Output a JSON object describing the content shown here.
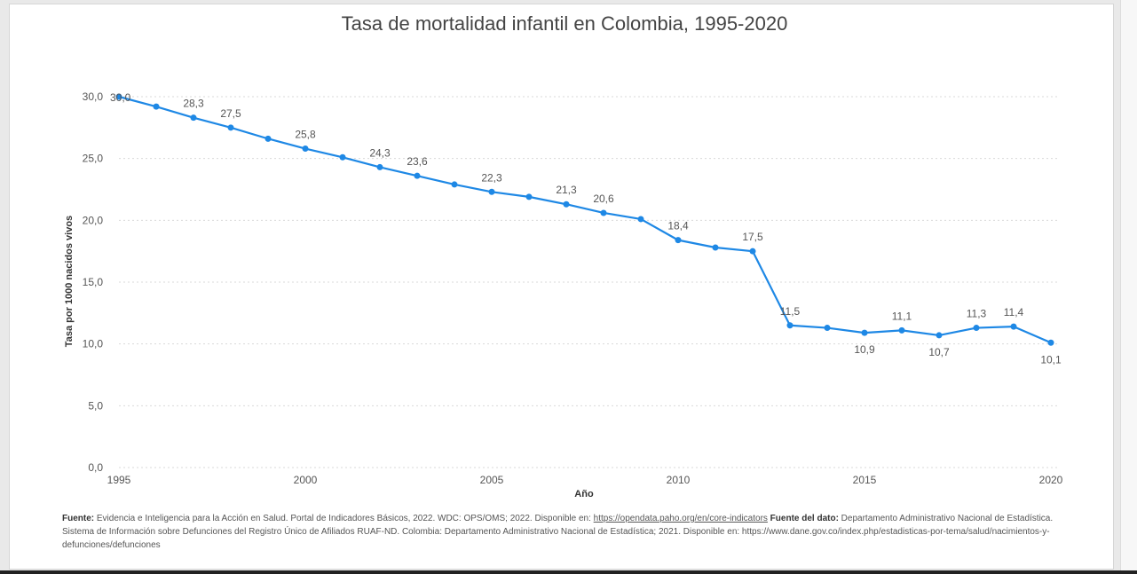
{
  "chart_data": {
    "type": "line",
    "title": "Tasa de mortalidad infantil en Colombia, 1995-2020",
    "xlabel": "Año",
    "ylabel": "Tasa por 1000 nacidos vivos",
    "xlim": [
      1995,
      2020
    ],
    "ylim": [
      0,
      30
    ],
    "x_ticks": [
      "1995",
      "2000",
      "2005",
      "2010",
      "2015",
      "2020"
    ],
    "y_ticks": [
      "0,0",
      "5,0",
      "10,0",
      "15,0",
      "20,0",
      "25,0",
      "30,0"
    ],
    "grid": true,
    "series": [
      {
        "name": "Tasa de mortalidad infantil",
        "color": "#1e88e5",
        "x": [
          1995,
          1996,
          1997,
          1998,
          1999,
          2000,
          2001,
          2002,
          2003,
          2004,
          2005,
          2006,
          2007,
          2008,
          2009,
          2010,
          2011,
          2012,
          2013,
          2014,
          2015,
          2016,
          2017,
          2018,
          2019,
          2020
        ],
        "values": [
          30.0,
          29.2,
          28.3,
          27.5,
          26.6,
          25.8,
          25.1,
          24.3,
          23.6,
          22.9,
          22.3,
          21.9,
          21.3,
          20.6,
          20.1,
          18.4,
          17.8,
          17.5,
          11.5,
          11.3,
          10.9,
          11.1,
          10.7,
          11.3,
          11.4,
          10.1
        ]
      }
    ],
    "data_labels": [
      {
        "year": 1995,
        "text": "30,0",
        "pos": "right"
      },
      {
        "year": 1997,
        "text": "28,3",
        "pos": "above"
      },
      {
        "year": 1998,
        "text": "27,5",
        "pos": "above"
      },
      {
        "year": 2000,
        "text": "25,8",
        "pos": "above"
      },
      {
        "year": 2002,
        "text": "24,3",
        "pos": "above"
      },
      {
        "year": 2003,
        "text": "23,6",
        "pos": "above"
      },
      {
        "year": 2005,
        "text": "22,3",
        "pos": "above"
      },
      {
        "year": 2007,
        "text": "21,3",
        "pos": "above"
      },
      {
        "year": 2008,
        "text": "20,6",
        "pos": "above"
      },
      {
        "year": 2010,
        "text": "18,4",
        "pos": "above"
      },
      {
        "year": 2012,
        "text": "17,5",
        "pos": "above"
      },
      {
        "year": 2013,
        "text": "11,5",
        "pos": "above"
      },
      {
        "year": 2015,
        "text": "10,9",
        "pos": "below"
      },
      {
        "year": 2016,
        "text": "11,1",
        "pos": "above"
      },
      {
        "year": 2017,
        "text": "10,7",
        "pos": "below"
      },
      {
        "year": 2018,
        "text": "11,3",
        "pos": "above"
      },
      {
        "year": 2019,
        "text": "11,4",
        "pos": "above"
      },
      {
        "year": 2020,
        "text": "10,1",
        "pos": "below"
      }
    ]
  },
  "footer": {
    "fuente_label": "Fuente:",
    "fuente_text": " Evidencia e Inteligencia para la Acción en Salud. Portal de Indicadores Básicos, 2022. WDC: OPS/OMS; 2022. Disponible en: ",
    "fuente_link": "https://opendata.paho.org/en/core-indicators",
    "dato_label": " Fuente del dato:",
    "dato_text": " Departamento Administrativo Nacional de Estadística. Sistema de Información sobre Defunciones del Registro Único de Afiliados RUAF-ND. Colombia: Departamento Administrativo Nacional de Estadística; 2021. Disponible en: https://www.dane.gov.co/index.php/estadisticas-por-tema/salud/nacimientos-y-defunciones/defunciones"
  }
}
